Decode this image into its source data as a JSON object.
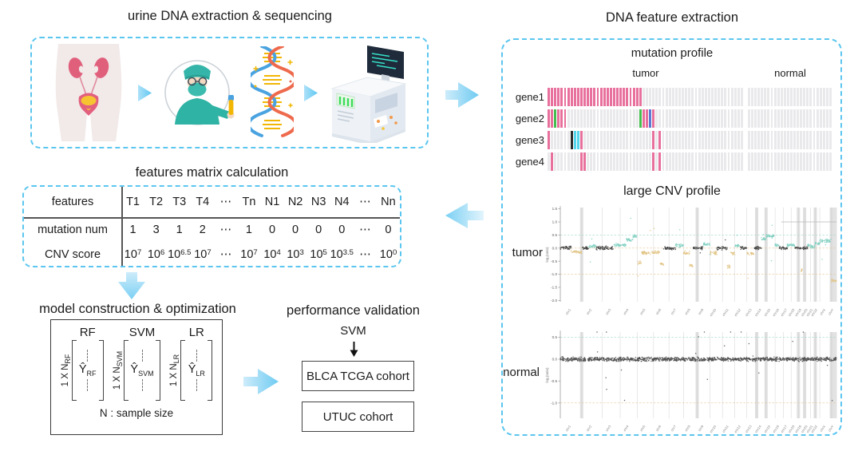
{
  "colors": {
    "dash_border": "#5bc6ef",
    "arrow_light": "#cdecfa",
    "arrow_dark": "#6fcbf2",
    "text": "#1c1c1c"
  },
  "flow_icons": {
    "extract_to_feature": "arrow-right",
    "feature_to_matrix": "arrow-left",
    "matrix_to_model": "arrow-down",
    "model_to_validation": "arrow-right",
    "step_chevron": "chevron-right",
    "svm_to_cohort": "arrow-down-black"
  },
  "sections": {
    "extraction": {
      "title": "urine DNA extraction & sequencing",
      "icons": [
        "body-kidneys-icon",
        "chevron-right-icon",
        "scientist-sample-icon",
        "dna-helix-icon",
        "chevron-right-icon",
        "sequencer-machine-icon"
      ]
    },
    "matrix": {
      "title": "features matrix calculation",
      "header": [
        "features",
        "T1",
        "T2",
        "T3",
        "T4",
        "⋯",
        "Tn",
        "N1",
        "N2",
        "N3",
        "N4",
        "⋯",
        "Nn"
      ],
      "rows": [
        {
          "label": "mutation num",
          "cells": [
            "1",
            "3",
            "1",
            "2",
            "⋯",
            "1",
            "0",
            "0",
            "0",
            "0",
            "⋯",
            "0"
          ]
        },
        {
          "label": "CNV score",
          "cells": [
            "10^7",
            "10^6",
            "10^6.5",
            "10^7",
            "⋯",
            "10^7",
            "10^4",
            "10^3",
            "10^5",
            "10^3.5",
            "⋯",
            "10^0"
          ]
        }
      ]
    },
    "model": {
      "title": "model construction & optimization",
      "columns": [
        {
          "name": "RF",
          "dim_base": "1 X N",
          "dim_sub": "RF",
          "y_base": "Ŷ",
          "y_sub": "RF"
        },
        {
          "name": "SVM",
          "dim_base": "1 X N",
          "dim_sub": "SVM",
          "y_base": "Ŷ",
          "y_sub": "SVM"
        },
        {
          "name": "LR",
          "dim_base": "1 X N",
          "dim_sub": "LR",
          "y_base": "Ŷ",
          "y_sub": "LR"
        }
      ],
      "note": "N :  sample size"
    },
    "validation": {
      "title": "performance validation",
      "selected_model": "SVM",
      "cohorts": [
        "BLCA TCGA cohort",
        "UTUC cohort"
      ]
    },
    "feature": {
      "title": "DNA feature extraction",
      "mutation": {
        "title": "mutation profile",
        "groups": [
          {
            "label": "tumor",
            "bars": 60
          },
          {
            "label": "normal",
            "bars": 26
          }
        ],
        "genes": [
          "gene1",
          "gene2",
          "gene3",
          "gene4"
        ],
        "palette": {
          "pink": "#e8709c",
          "green": "#44bd4f",
          "blue": "#5c78d3",
          "cyan": "#54d4ea",
          "black": "#2b2b2b",
          "bg": "#e9e9ec"
        },
        "marks": {
          "gene1": {
            "tumor": [
              [
                0,
                29,
                "pink"
              ]
            ],
            "normal": []
          },
          "gene2": {
            "tumor": [
              [
                0,
                2,
                "pink"
              ],
              [
                2,
                3,
                "green"
              ],
              [
                3,
                6,
                "pink"
              ],
              [
                28,
                29,
                "green"
              ],
              [
                29,
                31,
                "pink"
              ],
              [
                31,
                32,
                "blue"
              ],
              [
                32,
                33,
                "pink"
              ]
            ],
            "normal": []
          },
          "gene3": {
            "tumor": [
              [
                0,
                1,
                "pink"
              ],
              [
                7,
                8,
                "black"
              ],
              [
                8,
                10,
                "cyan"
              ],
              [
                10,
                11,
                "pink"
              ],
              [
                32,
                33,
                "pink"
              ],
              [
                34,
                35,
                "pink"
              ]
            ],
            "normal": []
          },
          "gene4": {
            "tumor": [
              [
                1,
                2,
                "pink"
              ],
              [
                10,
                12,
                "pink"
              ],
              [
                32,
                33,
                "pink"
              ],
              [
                34,
                35,
                "pink"
              ]
            ],
            "normal": []
          }
        }
      },
      "cnv": {
        "title": "large CNV profile",
        "panel_labels": [
          "tumor",
          "normal"
        ]
      }
    }
  },
  "chromosome_axis": {
    "labels": [
      "chr1",
      "chr2",
      "chr3",
      "chr4",
      "chr5",
      "chr6",
      "chr7",
      "chr8",
      "chr9",
      "chr10",
      "chr11",
      "chr12",
      "chr13",
      "chr14",
      "chr15",
      "chr16",
      "chr17",
      "chr18",
      "chr19",
      "chr20",
      "chr21",
      "chr22",
      "chrX",
      "chrY"
    ],
    "weights": [
      10,
      9.5,
      8.5,
      8,
      7.6,
      7.2,
      6.8,
      6.4,
      6,
      5.8,
      5.8,
      5.6,
      4.6,
      4.4,
      4.2,
      3.9,
      3.6,
      3.4,
      2.9,
      2.8,
      2.2,
      2.1,
      5.4,
      2.4
    ],
    "band_before": [
      false,
      true,
      false,
      false,
      false,
      false,
      false,
      false,
      true,
      false,
      false,
      false,
      false,
      true,
      true,
      false,
      false,
      false,
      true,
      true,
      false,
      true,
      false,
      true
    ],
    "shaded_chrom": "chrY"
  },
  "chart_data": [
    {
      "id": "cnv-tumor",
      "type": "scatter",
      "panel_label": "tumor",
      "ylabel": "log₂(ratio)",
      "ylim": [
        -2.05,
        1.55
      ],
      "yticks": [
        1.5,
        1.0,
        0.5,
        0.0,
        -0.5,
        -1.0,
        -1.5,
        -2.0
      ],
      "hlines": [
        {
          "y": 0.5,
          "style": "dashed",
          "color": "#9ed9cb"
        },
        {
          "y": 0.0,
          "style": "dashed",
          "color": "#e7c492"
        },
        {
          "y": -1.0,
          "style": "dashed",
          "color": "#e7c492"
        },
        {
          "y": 1.0,
          "style": "solid",
          "color": "#b9b9b9",
          "x_from": 0.8,
          "x_to": 1.0
        }
      ],
      "series_colors": {
        "n": "#3f3f3f",
        "g": "#7ecfc0",
        "l": "#e2c383"
      },
      "segments_by_chrom": [
        [
          [
            0.02,
            "n",
            0.5
          ],
          [
            -0.15,
            "l",
            0.5
          ]
        ],
        [
          [
            0.0,
            "n",
            0.35
          ],
          [
            0.08,
            "g",
            0.35
          ],
          [
            0.0,
            "n",
            0.3
          ]
        ],
        [
          [
            0.0,
            "n",
            0.65
          ],
          [
            0.12,
            "g",
            0.35
          ]
        ],
        [
          [
            0.12,
            "g",
            0.35
          ],
          [
            0.3,
            "g",
            0.4
          ],
          [
            0.45,
            "g",
            0.25
          ]
        ],
        [
          [
            -0.55,
            "l",
            0.25
          ],
          [
            -0.18,
            "l",
            0.75
          ]
        ],
        [
          [
            -0.15,
            "l",
            0.4
          ],
          [
            -0.6,
            "l",
            0.25
          ],
          [
            0.0,
            "n",
            0.35
          ]
        ],
        [
          [
            0.0,
            "n",
            0.45
          ],
          [
            0.1,
            "g",
            0.55
          ]
        ],
        [
          [
            -0.18,
            "l",
            0.45
          ],
          [
            -0.65,
            "l",
            0.25
          ],
          [
            0.0,
            "n",
            0.3
          ]
        ],
        [
          [
            0.0,
            "n",
            0.45
          ],
          [
            0.15,
            "g",
            0.55
          ]
        ],
        [
          [
            -0.18,
            "l",
            0.55
          ],
          [
            0.0,
            "n",
            0.45
          ]
        ],
        [
          [
            0.0,
            "n",
            0.4
          ],
          [
            -0.7,
            "l",
            0.25
          ],
          [
            -0.2,
            "l",
            0.35
          ]
        ],
        [
          [
            0.1,
            "g",
            0.45
          ],
          [
            0.0,
            "n",
            0.55
          ]
        ],
        [
          [
            -0.2,
            "l",
            0.7
          ],
          [
            0.0,
            "n",
            0.3
          ]
        ],
        [
          [
            0.0,
            "n",
            0.5
          ],
          [
            0.35,
            "g",
            0.5
          ]
        ],
        [
          [
            0.45,
            "g",
            1.0
          ]
        ],
        [
          [
            0.12,
            "g",
            0.5
          ],
          [
            0.0,
            "n",
            0.5
          ]
        ],
        [
          [
            0.0,
            "n",
            0.5
          ],
          [
            0.12,
            "g",
            0.5
          ]
        ],
        [
          [
            0.12,
            "g",
            0.55
          ],
          [
            0.0,
            "n",
            0.45
          ]
        ],
        [
          [
            0.0,
            "n",
            0.45
          ],
          [
            -0.85,
            "l",
            0.15
          ],
          [
            0.0,
            "n",
            0.4
          ]
        ],
        [
          [
            0.0,
            "n",
            0.5
          ],
          [
            0.1,
            "g",
            0.5
          ]
        ],
        [
          [
            0.05,
            "g",
            1.0
          ]
        ],
        [
          [
            0.18,
            "g",
            1.0
          ]
        ],
        [
          [
            0.28,
            "g",
            1.0
          ]
        ],
        [
          [
            -1.25,
            "l",
            1.0
          ]
        ]
      ]
    },
    {
      "id": "cnv-normal",
      "type": "scatter",
      "panel_label": "normal",
      "ylabel": "log₂(ratio)",
      "ylim": [
        -1.35,
        0.62
      ],
      "yticks": [
        0.5,
        0.0,
        -0.5,
        -1.0
      ],
      "hlines": [
        {
          "y": 0.5,
          "style": "dashed",
          "color": "#9ed9cb"
        },
        {
          "y": 0.0,
          "style": "dotted",
          "color": "#9a9a9a"
        },
        {
          "y": -1.0,
          "style": "dashed",
          "color": "#e7c492"
        }
      ],
      "series_colors": {
        "n": "#4a4a4a"
      },
      "uniform_level": 0.0,
      "jitter": 0.055
    }
  ]
}
